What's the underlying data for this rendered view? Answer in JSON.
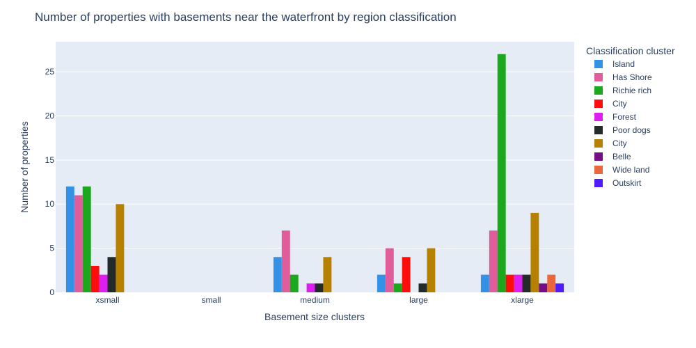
{
  "chart_data": {
    "type": "bar",
    "title": "Number of properties with basements near the waterfront by region classification",
    "xlabel": "Basement size clusters",
    "ylabel": "Number of properties",
    "categories": [
      "xsmall",
      "small",
      "medium",
      "large",
      "xlarge"
    ],
    "ylim": [
      0,
      28.4
    ],
    "yticks": [
      0,
      5,
      10,
      15,
      20,
      25
    ],
    "grid": true,
    "legend_title": "Classification cluster",
    "legend_position": "right",
    "series": [
      {
        "name": "Island",
        "color": "#3391e6",
        "values": [
          12,
          null,
          4,
          2,
          2
        ]
      },
      {
        "name": "Has Shore",
        "color": "#e05c9a",
        "values": [
          11,
          null,
          7,
          5,
          7
        ]
      },
      {
        "name": "Richie rich",
        "color": "#1ca81c",
        "values": [
          12,
          null,
          2,
          1,
          27
        ]
      },
      {
        "name": "City",
        "color": "#ff0d0d",
        "values": [
          3,
          null,
          null,
          4,
          2
        ]
      },
      {
        "name": "Forest",
        "color": "#dd1ef0",
        "values": [
          2,
          null,
          1,
          null,
          2
        ]
      },
      {
        "name": "Poor dogs",
        "color": "#222a2a",
        "values": [
          4,
          null,
          1,
          1,
          2
        ]
      },
      {
        "name": "City",
        "color": "#b68100",
        "values": [
          10,
          null,
          4,
          5,
          9
        ]
      },
      {
        "name": "Belle",
        "color": "#750d86",
        "values": [
          null,
          null,
          null,
          null,
          1
        ]
      },
      {
        "name": "Wide land",
        "color": "#eb663b",
        "values": [
          null,
          null,
          null,
          null,
          2
        ]
      },
      {
        "name": "Outskirt",
        "color": "#511cfb",
        "values": [
          null,
          null,
          null,
          null,
          1
        ]
      }
    ]
  }
}
